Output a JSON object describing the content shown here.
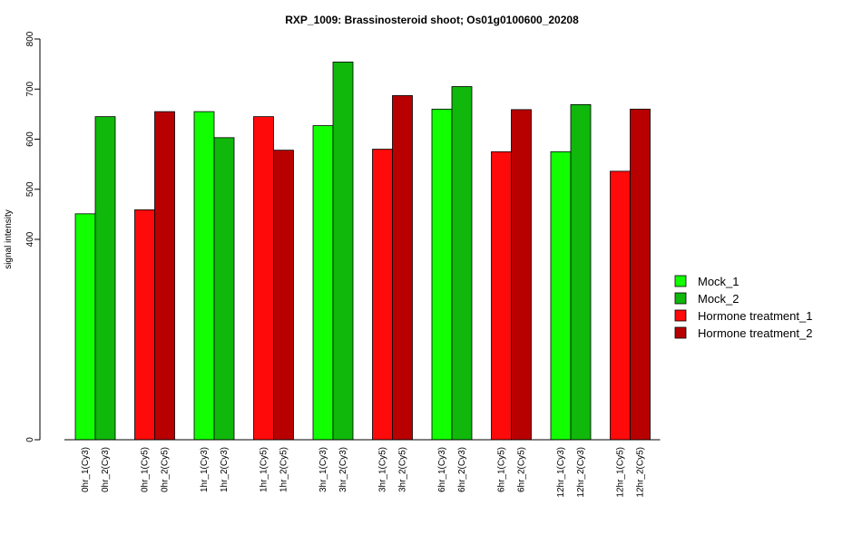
{
  "chart_data": {
    "type": "bar",
    "title": "RXP_1009: Brassinosteroid shoot; Os01g0100600_20208",
    "xlabel": "",
    "ylabel": "signal intensity",
    "scale_break": {
      "lower": [
        0,
        0
      ],
      "upper": [
        400,
        800
      ]
    },
    "yticks": [
      0,
      400,
      500,
      600,
      700,
      800
    ],
    "legend_position": "right",
    "colors": {
      "Mock_1": "#11ff00",
      "Mock_2": "#0fb80b",
      "Hormone treatment_1": "#ff0a0a",
      "Hormone treatment_2": "#b80000"
    },
    "legend": [
      "Mock_1",
      "Mock_2",
      "Hormone treatment_1",
      "Hormone treatment_2"
    ],
    "categories": [
      "0hr_1(Cy3)",
      "0hr_2(Cy3)",
      "0hr_1(Cy5)",
      "0hr_2(Cy5)",
      "1hr_1(Cy3)",
      "1hr_2(Cy3)",
      "1hr_1(Cy5)",
      "1hr_2(Cy5)",
      "3hr_1(Cy3)",
      "3hr_2(Cy3)",
      "3hr_1(Cy5)",
      "3hr_2(Cy5)",
      "6hr_1(Cy3)",
      "6hr_2(Cy3)",
      "6hr_1(Cy5)",
      "6hr_2(Cy5)",
      "12hr_1(Cy3)",
      "12hr_2(Cy3)",
      "12hr_1(Cy5)",
      "12hr_2(Cy5)"
    ],
    "series_of_bar": [
      "Mock_1",
      "Mock_2",
      "Hormone treatment_1",
      "Hormone treatment_2",
      "Mock_1",
      "Mock_2",
      "Hormone treatment_1",
      "Hormone treatment_2",
      "Mock_1",
      "Mock_2",
      "Hormone treatment_1",
      "Hormone treatment_2",
      "Mock_1",
      "Mock_2",
      "Hormone treatment_1",
      "Hormone treatment_2",
      "Mock_1",
      "Mock_2",
      "Hormone treatment_1",
      "Hormone treatment_2"
    ],
    "values": [
      451,
      645,
      459,
      655,
      655,
      603,
      645,
      578,
      627,
      754,
      580,
      687,
      660,
      705,
      575,
      659,
      575,
      669,
      536,
      660
    ]
  }
}
